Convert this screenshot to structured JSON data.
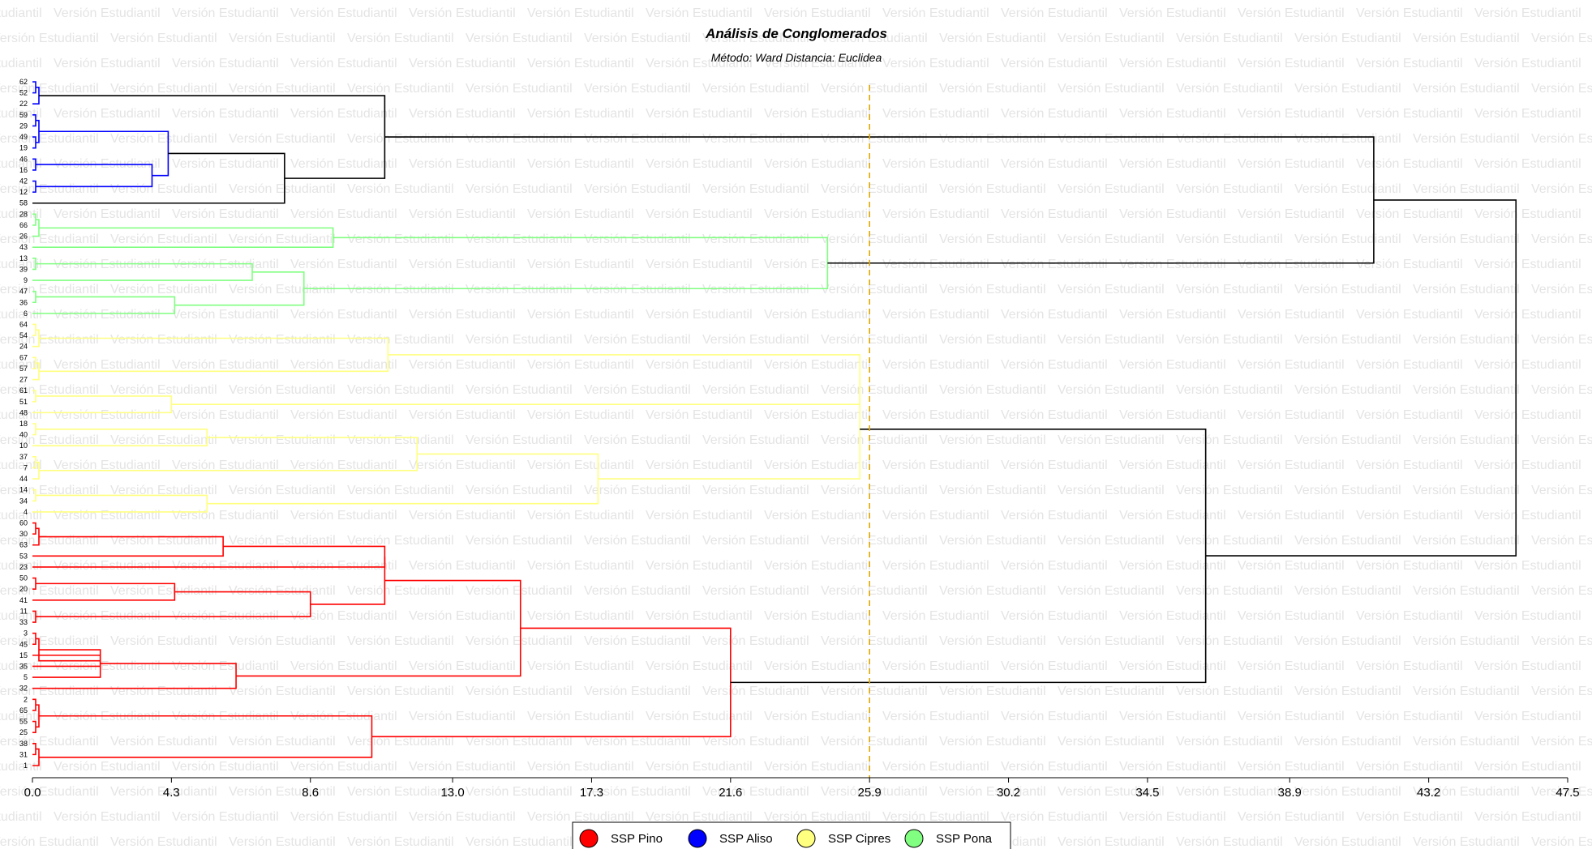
{
  "watermark_text": "Versión Estudiantil",
  "chart_data": {
    "type": "dendrogram",
    "title": "Análisis de Conglomerados",
    "subtitle": "Método: Ward  Distancia: Euclidea",
    "orientation": "horizontal",
    "xlim": [
      0,
      47.5
    ],
    "x_ticks": [
      "0.0",
      "4.3",
      "8.6",
      "13.0",
      "17.3",
      "21.6",
      "25.9",
      "30.2",
      "34.5",
      "38.9",
      "43.2",
      "47.5"
    ],
    "cut_line": 25.9,
    "cut_line_color": "#e0a800",
    "leaves": [
      "62",
      "52",
      "22",
      "59",
      "29",
      "49",
      "19",
      "46",
      "16",
      "42",
      "12",
      "58",
      "28",
      "66",
      "26",
      "43",
      "13",
      "39",
      "9",
      "47",
      "36",
      "6",
      "64",
      "54",
      "24",
      "67",
      "57",
      "27",
      "61",
      "51",
      "48",
      "18",
      "40",
      "10",
      "37",
      "7",
      "44",
      "14",
      "34",
      "4",
      "60",
      "30",
      "63",
      "53",
      "23",
      "50",
      "20",
      "41",
      "11",
      "33",
      "3",
      "45",
      "15",
      "35",
      "5",
      "32",
      "2",
      "65",
      "55",
      "25",
      "38",
      "31",
      "1"
    ],
    "groups": [
      {
        "name": "SSP Pino",
        "color": "#ff0000"
      },
      {
        "name": "SSP Aliso",
        "color": "#0000ff"
      },
      {
        "name": "SSP Cipres",
        "color": "#ffff80"
      },
      {
        "name": "SSP Pona",
        "color": "#80ff80"
      }
    ],
    "merges": [
      {
        "a": "62",
        "b": "52",
        "height": 0.1
      },
      {
        "a": "m1",
        "b": "22",
        "height": 0.2
      },
      {
        "a": "59",
        "b": "29",
        "height": 0.1
      },
      {
        "a": "49",
        "b": "19",
        "height": 0.1
      },
      {
        "a": "m3",
        "b": "m4",
        "height": 0.2
      },
      {
        "a": "46",
        "b": "16",
        "height": 0.1
      },
      {
        "a": "42",
        "b": "12",
        "height": 0.1
      },
      {
        "a": "m6",
        "b": "m7",
        "height": 3.7
      },
      {
        "a": "m5",
        "b": "m8",
        "height": 4.2
      },
      {
        "a": "m9",
        "b": "58",
        "height": 7.8
      },
      {
        "a": "m2",
        "b": "m10",
        "height": 10.9
      },
      {
        "a": "28",
        "b": "66",
        "height": 0.1
      },
      {
        "a": "m12",
        "b": "26",
        "height": 0.2
      },
      {
        "a": "m13",
        "b": "43",
        "height": 9.3
      },
      {
        "a": "13",
        "b": "39",
        "height": 0.1
      },
      {
        "a": "m15",
        "b": "9",
        "height": 6.8
      },
      {
        "a": "47",
        "b": "36",
        "height": 0.1
      },
      {
        "a": "m17",
        "b": "6",
        "height": 4.4
      },
      {
        "a": "m16",
        "b": "m18",
        "height": 8.4
      },
      {
        "a": "m14",
        "b": "m19",
        "height": 24.6
      },
      {
        "a": "m11",
        "b": "m20",
        "height": 41.5
      },
      {
        "a": "64",
        "b": "54",
        "height": 0.1
      },
      {
        "a": "m22",
        "b": "24",
        "height": 0.2
      },
      {
        "a": "67",
        "b": "57",
        "height": 0.1
      },
      {
        "a": "m24",
        "b": "27",
        "height": 0.2
      },
      {
        "a": "m23",
        "b": "m25",
        "height": 11.0
      },
      {
        "a": "61",
        "b": "51",
        "height": 0.1
      },
      {
        "a": "m27",
        "b": "48",
        "height": 4.3
      },
      {
        "a": "m26",
        "b": "m28",
        "height": 25.6
      },
      {
        "a": "18",
        "b": "40",
        "height": 0.1
      },
      {
        "a": "m30",
        "b": "10",
        "height": 5.4
      },
      {
        "a": "37",
        "b": "7",
        "height": 0.1
      },
      {
        "a": "m32",
        "b": "44",
        "height": 0.2
      },
      {
        "a": "m31",
        "b": "m33",
        "height": 11.9
      },
      {
        "a": "14",
        "b": "34",
        "height": 0.1
      },
      {
        "a": "m35",
        "b": "4",
        "height": 5.4
      },
      {
        "a": "m34",
        "b": "m36",
        "height": 17.5
      },
      {
        "a": "m29",
        "b": "m37",
        "height": 25.6
      },
      {
        "a": "60",
        "b": "30",
        "height": 0.1
      },
      {
        "a": "m39",
        "b": "63",
        "height": 0.2
      },
      {
        "a": "m40",
        "b": "53",
        "height": 5.9
      },
      {
        "a": "m41",
        "b": "23",
        "height": 10.9
      },
      {
        "a": "50",
        "b": "20",
        "height": 0.1
      },
      {
        "a": "m43",
        "b": "41",
        "height": 4.4
      },
      {
        "a": "11",
        "b": "33",
        "height": 0.1
      },
      {
        "a": "m44",
        "b": "m45",
        "height": 8.6
      },
      {
        "a": "m42",
        "b": "m46",
        "height": 10.9
      },
      {
        "a": "3",
        "b": "45",
        "height": 0.1
      },
      {
        "a": "15",
        "b": "35",
        "height": 2.1
      },
      {
        "a": "m48",
        "b": "m49",
        "height": 0.2
      },
      {
        "a": "m50",
        "b": "5",
        "height": 2.1
      },
      {
        "a": "m51",
        "b": "32",
        "height": 6.3
      },
      {
        "a": "m47",
        "b": "m52",
        "height": 15.1
      },
      {
        "a": "2",
        "b": "65",
        "height": 0.1
      },
      {
        "a": "55",
        "b": "25",
        "height": 0.1
      },
      {
        "a": "m54",
        "b": "m55",
        "height": 0.2
      },
      {
        "a": "38",
        "b": "31",
        "height": 0.1
      },
      {
        "a": "m57",
        "b": "1",
        "height": 0.2
      },
      {
        "a": "m56",
        "b": "m58",
        "height": 10.5
      },
      {
        "a": "m53",
        "b": "m59",
        "height": 21.6
      },
      {
        "a": "m38",
        "b": "m60",
        "height": 36.3
      },
      {
        "a": "m21",
        "b": "m61",
        "height": 45.9
      }
    ],
    "legend": {
      "position": "bottom"
    }
  }
}
